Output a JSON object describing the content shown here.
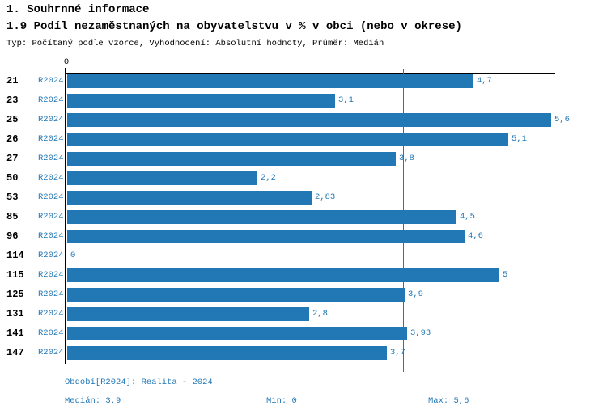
{
  "page": {
    "title": "1. Souhrnné informace",
    "subtitle": "1.9 Podíl nezaměstnaných na obyvatelstvu v % v obci (nebo v okrese)",
    "meta": "Typ: Počítaný podle vzorce, Vyhodnocení: Absolutní hodnoty, Průměr: Medián"
  },
  "chart_data": {
    "type": "bar",
    "orientation": "horizontal",
    "title": "1.9 Podíl nezaměstnaných na obyvatelstvu v % v obci (nebo v okrese)",
    "categories": [
      "21",
      "23",
      "25",
      "26",
      "27",
      "50",
      "53",
      "85",
      "96",
      "114",
      "115",
      "125",
      "131",
      "141",
      "147"
    ],
    "series": [
      {
        "name": "R2024",
        "values": [
          4.7,
          3.1,
          5.6,
          5.1,
          3.8,
          2.2,
          2.83,
          4.5,
          4.6,
          0,
          5,
          3.9,
          2.8,
          3.93,
          3.7
        ],
        "value_labels": [
          "4,7",
          "3,1",
          "5,6",
          "5,1",
          "3,8",
          "2,2",
          "2,83",
          "4,5",
          "4,6",
          "0",
          "5",
          "3,9",
          "2,8",
          "3,93",
          "3,7"
        ]
      }
    ],
    "axis_zero_label": "0",
    "xlim": [
      0,
      5.65
    ],
    "median_value": 3.9,
    "grid": false,
    "legend_position": "none",
    "bar_color": "#2277b5",
    "axis_color": "#000000",
    "label_color": "#2277b5"
  },
  "footer": {
    "period": "Období[R2024]: Realita - 2024",
    "median": "Medián: 3,9",
    "min": "Min: 0",
    "max": "Max: 5,6"
  }
}
